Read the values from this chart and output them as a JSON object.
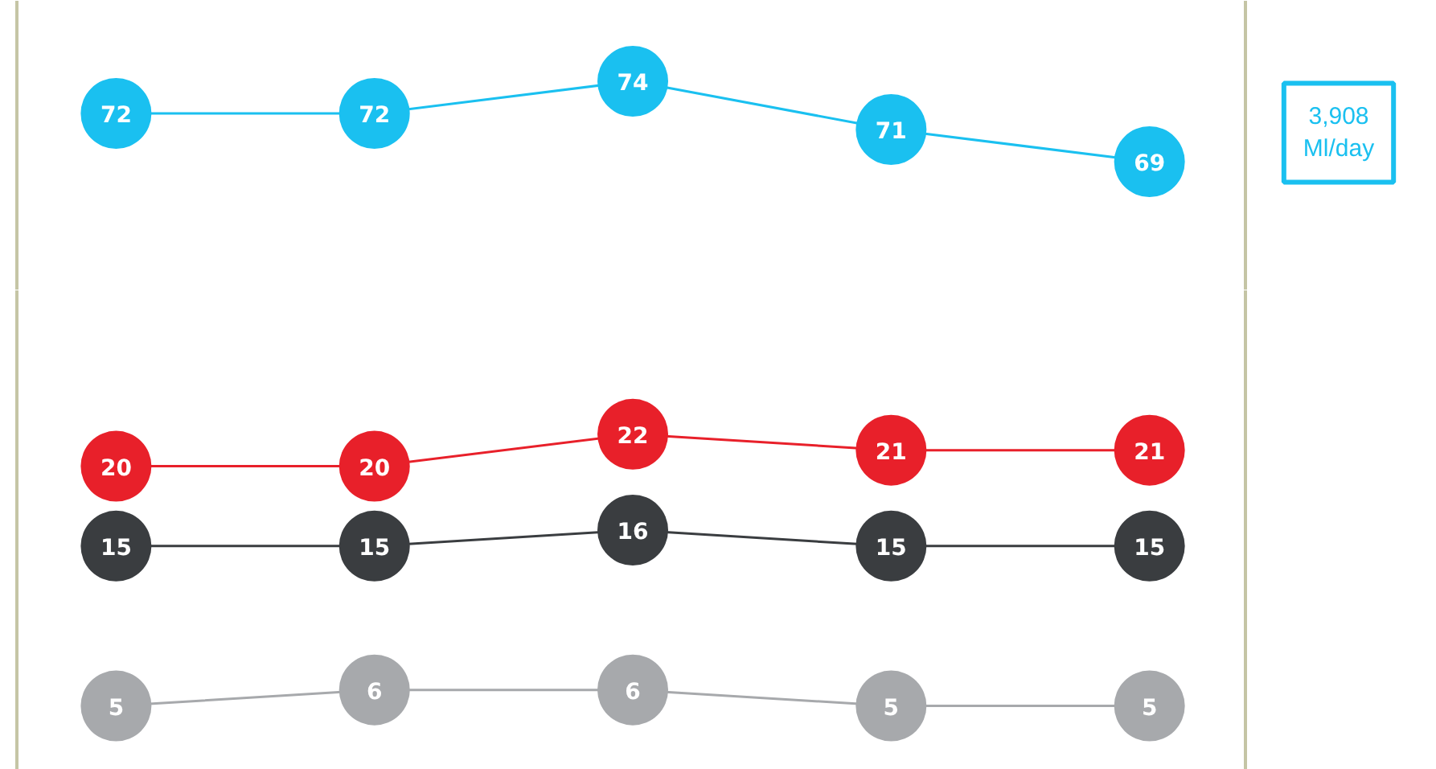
{
  "chart_data": [
    {
      "type": "line",
      "categories": [
        null,
        null,
        null,
        null,
        null
      ],
      "ylim": [
        61,
        79
      ],
      "tick_labels": false,
      "data_labels": true,
      "marker": "circle",
      "grid": false,
      "series": [
        {
          "color": "#1ac0f0",
          "values": [
            72,
            72,
            74,
            71,
            69
          ]
        }
      ],
      "annotations": [
        "3,908\nMl/day"
      ]
    },
    {
      "type": "line",
      "categories": [
        null,
        null,
        null,
        null,
        null
      ],
      "ylim": [
        1,
        31
      ],
      "tick_labels": false,
      "data_labels": true,
      "marker": "circle",
      "grid": false,
      "series": [
        {
          "color": "#e8202a",
          "values": [
            20,
            20,
            22,
            21,
            21
          ]
        },
        {
          "color": "#3a3d40",
          "values": [
            15,
            15,
            16,
            15,
            15
          ]
        },
        {
          "color": "#a7a9ac",
          "values": [
            5,
            6,
            6,
            5,
            5
          ]
        }
      ]
    }
  ]
}
